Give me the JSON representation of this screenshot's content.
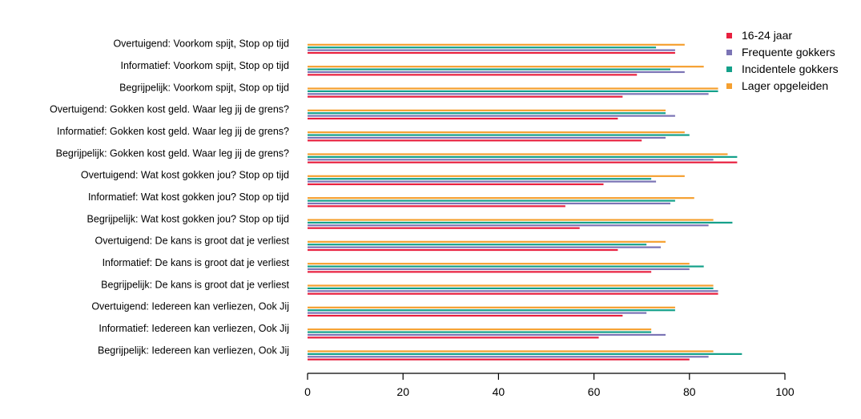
{
  "chart_data": {
    "type": "bar",
    "orientation": "horizontal",
    "categories": [
      "Begrijpelijk: Iedereen kan verliezen, Ook Jij",
      "Informatief: Iedereen kan verliezen, Ook Jij",
      "Overtuigend: Iedereen kan verliezen, Ook Jij",
      "Begrijpelijk: De kans is groot dat je verliest",
      "Informatief: De kans is groot dat je verliest",
      "Overtuigend: De kans is groot dat je verliest",
      "Begrijpelijk: Wat kost gokken jou? Stop op tijd",
      "Informatief: Wat kost gokken jou? Stop op tijd",
      "Overtuigend: Wat kost gokken jou? Stop op tijd",
      "Begrijpelijk: Gokken kost geld. Waar leg jij de grens?",
      "Informatief: Gokken kost geld. Waar leg jij de grens?",
      "Overtuigend: Gokken kost geld. Waar leg jij de grens?",
      "Begrijpelijk: Voorkom spijt, Stop op tijd",
      "Informatief: Voorkom spijt, Stop op tijd",
      "Overtuigend: Voorkom spijt, Stop op tijd"
    ],
    "series": [
      {
        "name": "16-24 jaar",
        "color": "#e8203f",
        "values": [
          80,
          61,
          66,
          86,
          72,
          65,
          57,
          54,
          62,
          90,
          70,
          65,
          66,
          69,
          77
        ]
      },
      {
        "name": "Frequente gokkers",
        "color": "#7b74b5",
        "values": [
          84,
          75,
          71,
          86,
          80,
          74,
          84,
          76,
          73,
          85,
          75,
          77,
          84,
          79,
          77
        ]
      },
      {
        "name": "Incidentele gokkers",
        "color": "#14a08a",
        "values": [
          91,
          72,
          77,
          85,
          83,
          71,
          89,
          77,
          72,
          90,
          80,
          75,
          86,
          76,
          73
        ]
      },
      {
        "name": "Lager opgeleiden",
        "color": "#f5a030",
        "values": [
          85,
          72,
          77,
          85,
          80,
          75,
          85,
          81,
          79,
          88,
          79,
          75,
          86,
          83,
          79
        ]
      }
    ],
    "xlim": [
      0,
      100
    ],
    "xticks": [
      0,
      20,
      40,
      60,
      80,
      100
    ],
    "legend": {
      "position": "top-right",
      "entries": [
        "16-24 jaar",
        "Frequente gokkers",
        "Incidentele gokkers",
        "Lager opgeleiden"
      ]
    },
    "grid": false
  }
}
